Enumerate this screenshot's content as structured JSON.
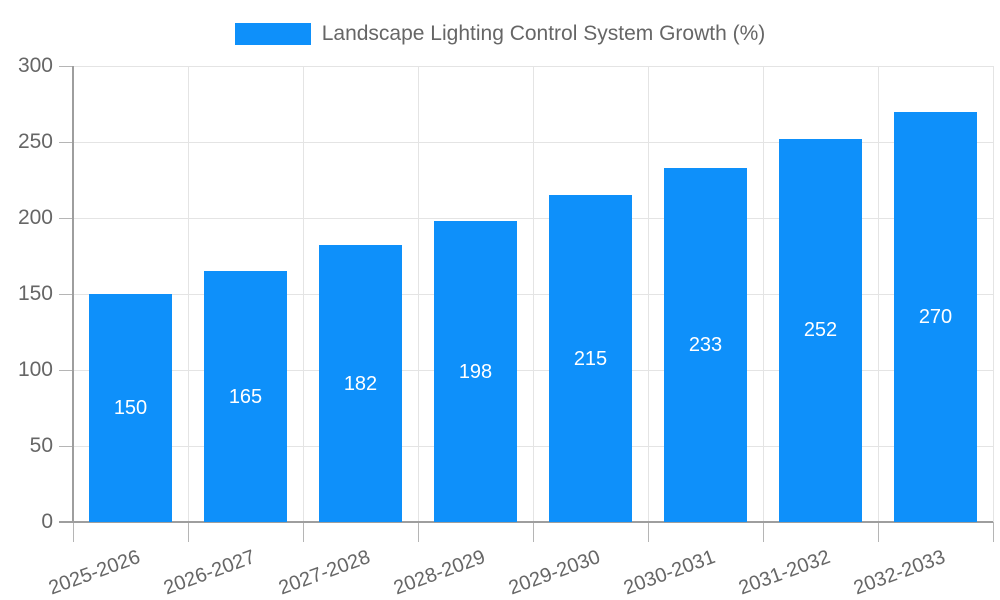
{
  "chart_data": {
    "type": "bar",
    "title": "Landscape Lighting Control System Growth (%)",
    "categories": [
      "2025-2026",
      "2026-2027",
      "2027-2028",
      "2028-2029",
      "2029-2030",
      "2030-2031",
      "2031-2032",
      "2032-2033"
    ],
    "values": [
      150,
      165,
      182,
      198,
      215,
      233,
      252,
      270
    ],
    "xlabel": "",
    "ylabel": "",
    "ylim": [
      0,
      300
    ],
    "yticks": [
      0,
      50,
      100,
      150,
      200,
      250,
      300
    ],
    "grid": "on",
    "legend_position": "top-center",
    "value_labels": "centered-inside-bars",
    "colors": {
      "bar": "#0E90FA",
      "legend_text": "#666666",
      "tick_text": "#666666",
      "grid": "#e4e4e4",
      "axis": "#9e9e9e",
      "tick_mark": "#b5b5b5",
      "value_label": "#ffffff",
      "background": "#ffffff"
    }
  }
}
